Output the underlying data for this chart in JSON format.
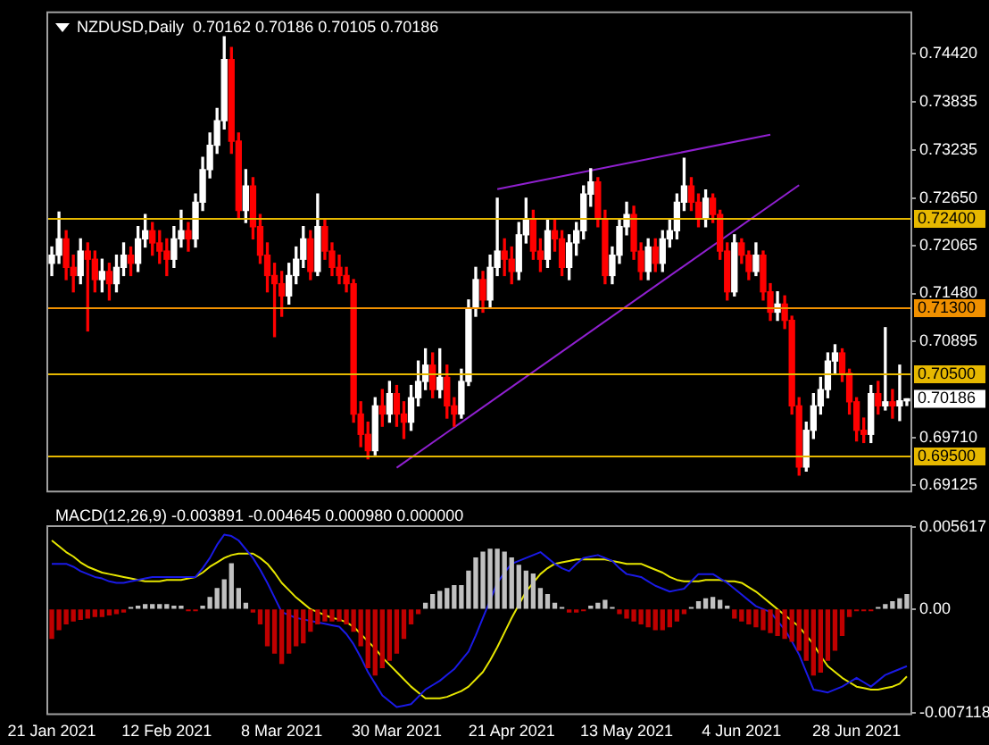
{
  "chart_data": [
    {
      "type": "candlestick",
      "title": "NZDUSD,Daily  0.70162 0.70186 0.70105 0.70186",
      "categories": [
        null,
        null,
        null,
        null,
        null,
        null,
        null,
        null,
        null,
        null,
        null,
        null,
        null,
        null,
        null,
        null,
        null,
        null,
        null,
        null,
        null,
        null,
        null,
        null,
        null,
        null,
        null,
        null,
        null,
        null,
        null,
        null,
        null,
        null,
        null,
        null,
        null,
        null,
        null,
        null,
        null,
        null,
        null,
        null,
        null,
        null,
        null,
        null,
        null,
        null,
        null,
        null,
        null,
        null,
        null,
        null,
        null,
        null,
        null,
        null,
        null,
        null,
        null,
        null,
        null,
        null,
        null,
        null,
        null,
        null,
        null,
        null,
        null,
        null,
        null,
        null,
        null,
        null,
        null,
        null,
        null,
        null,
        null,
        null,
        null,
        null,
        null,
        null,
        null,
        null,
        null,
        null,
        null,
        null,
        null,
        null,
        null,
        null,
        null,
        null,
        null,
        null,
        null,
        null,
        null,
        null,
        null,
        null,
        null,
        null,
        null,
        null,
        null,
        null,
        null,
        null,
        null,
        null,
        null,
        null
      ],
      "ohlc": [
        [
          0.7185,
          0.7205,
          0.717,
          0.7195
        ],
        [
          0.7195,
          0.7248,
          0.7185,
          0.7215
        ],
        [
          0.7215,
          0.7225,
          0.7165,
          0.718
        ],
        [
          0.718,
          0.7195,
          0.715,
          0.717
        ],
        [
          0.717,
          0.7215,
          0.716,
          0.72
        ],
        [
          0.72,
          0.721,
          0.7102,
          0.719
        ],
        [
          0.719,
          0.72,
          0.715,
          0.7165
        ],
        [
          0.7165,
          0.719,
          0.715,
          0.7175
        ],
        [
          0.7175,
          0.7185,
          0.714,
          0.716
        ],
        [
          0.716,
          0.7195,
          0.715,
          0.718
        ],
        [
          0.718,
          0.721,
          0.717,
          0.7195
        ],
        [
          0.7195,
          0.7205,
          0.717,
          0.7185
        ],
        [
          0.7185,
          0.723,
          0.7175,
          0.7215
        ],
        [
          0.7215,
          0.7245,
          0.7205,
          0.7225
        ],
        [
          0.7225,
          0.7235,
          0.7195,
          0.721
        ],
        [
          0.721,
          0.7225,
          0.7185,
          0.72
        ],
        [
          0.72,
          0.7215,
          0.717,
          0.719
        ],
        [
          0.719,
          0.723,
          0.718,
          0.7215
        ],
        [
          0.7215,
          0.725,
          0.7205,
          0.7225
        ],
        [
          0.7225,
          0.7235,
          0.72,
          0.7215
        ],
        [
          0.7215,
          0.727,
          0.7205,
          0.726
        ],
        [
          0.726,
          0.7315,
          0.725,
          0.73
        ],
        [
          0.73,
          0.7345,
          0.729,
          0.733
        ],
        [
          0.733,
          0.7375,
          0.732,
          0.736
        ],
        [
          0.736,
          0.7463,
          0.735,
          0.7435
        ],
        [
          0.7435,
          0.745,
          0.732,
          0.7335
        ],
        [
          0.7335,
          0.7345,
          0.724,
          0.725
        ],
        [
          0.725,
          0.73,
          0.7235,
          0.728
        ],
        [
          0.728,
          0.729,
          0.7215,
          0.723
        ],
        [
          0.723,
          0.7245,
          0.7185,
          0.7195
        ],
        [
          0.7195,
          0.721,
          0.715,
          0.717
        ],
        [
          0.717,
          0.7185,
          0.7095,
          0.716
        ],
        [
          0.716,
          0.7175,
          0.712,
          0.7145
        ],
        [
          0.7145,
          0.7185,
          0.7135,
          0.717
        ],
        [
          0.717,
          0.7205,
          0.716,
          0.719
        ],
        [
          0.719,
          0.723,
          0.718,
          0.7215
        ],
        [
          0.7215,
          0.7225,
          0.7165,
          0.7175
        ],
        [
          0.7175,
          0.727,
          0.717,
          0.723
        ],
        [
          0.723,
          0.724,
          0.719,
          0.72
        ],
        [
          0.72,
          0.721,
          0.717,
          0.718
        ],
        [
          0.718,
          0.7195,
          0.716,
          0.717
        ],
        [
          0.717,
          0.718,
          0.715,
          0.716
        ],
        [
          0.716,
          0.7165,
          0.699,
          0.7
        ],
        [
          0.7,
          0.7015,
          0.696,
          0.6975
        ],
        [
          0.6975,
          0.699,
          0.6945,
          0.6955
        ],
        [
          0.6955,
          0.702,
          0.695,
          0.701
        ],
        [
          0.701,
          0.703,
          0.6985,
          0.7
        ],
        [
          0.7,
          0.704,
          0.699,
          0.7025
        ],
        [
          0.7025,
          0.7035,
          0.6985,
          0.7
        ],
        [
          0.7,
          0.7015,
          0.697,
          0.699
        ],
        [
          0.699,
          0.7035,
          0.698,
          0.702
        ],
        [
          0.702,
          0.7065,
          0.701,
          0.704
        ],
        [
          0.704,
          0.708,
          0.703,
          0.706
        ],
        [
          0.706,
          0.7075,
          0.702,
          0.703
        ],
        [
          0.703,
          0.708,
          0.702,
          0.7045
        ],
        [
          0.7045,
          0.706,
          0.6995,
          0.701
        ],
        [
          0.701,
          0.702,
          0.6985,
          0.7
        ],
        [
          0.7,
          0.7055,
          0.6995,
          0.704
        ],
        [
          0.704,
          0.714,
          0.7035,
          0.713
        ],
        [
          0.713,
          0.718,
          0.712,
          0.7165
        ],
        [
          0.7165,
          0.7175,
          0.7125,
          0.714
        ],
        [
          0.714,
          0.7195,
          0.713,
          0.718
        ],
        [
          0.718,
          0.7265,
          0.717,
          0.72
        ],
        [
          0.72,
          0.7215,
          0.717,
          0.719
        ],
        [
          0.719,
          0.7205,
          0.716,
          0.7175
        ],
        [
          0.7175,
          0.7235,
          0.7165,
          0.722
        ],
        [
          0.722,
          0.7265,
          0.721,
          0.724
        ],
        [
          0.724,
          0.725,
          0.719,
          0.72
        ],
        [
          0.72,
          0.7215,
          0.7175,
          0.719
        ],
        [
          0.719,
          0.724,
          0.718,
          0.7225
        ],
        [
          0.7225,
          0.724,
          0.72,
          0.7215
        ],
        [
          0.7215,
          0.7225,
          0.717,
          0.718
        ],
        [
          0.718,
          0.722,
          0.7165,
          0.721
        ],
        [
          0.721,
          0.7235,
          0.7195,
          0.7225
        ],
        [
          0.7225,
          0.728,
          0.7215,
          0.727
        ],
        [
          0.727,
          0.7301,
          0.7255,
          0.7285
        ],
        [
          0.7285,
          0.729,
          0.723,
          0.724
        ],
        [
          0.724,
          0.725,
          0.716,
          0.717
        ],
        [
          0.717,
          0.7205,
          0.716,
          0.7195
        ],
        [
          0.7195,
          0.724,
          0.7185,
          0.723
        ],
        [
          0.723,
          0.726,
          0.722,
          0.7245
        ],
        [
          0.7245,
          0.7255,
          0.719,
          0.72
        ],
        [
          0.72,
          0.721,
          0.7165,
          0.7175
        ],
        [
          0.7175,
          0.7215,
          0.7165,
          0.7205
        ],
        [
          0.7205,
          0.7215,
          0.7175,
          0.7185
        ],
        [
          0.7185,
          0.7225,
          0.7175,
          0.7215
        ],
        [
          0.7215,
          0.724,
          0.7205,
          0.7225
        ],
        [
          0.7225,
          0.727,
          0.7215,
          0.726
        ],
        [
          0.726,
          0.7314,
          0.725,
          0.728
        ],
        [
          0.728,
          0.729,
          0.725,
          0.726
        ],
        [
          0.726,
          0.727,
          0.723,
          0.724
        ],
        [
          0.724,
          0.7275,
          0.723,
          0.7265
        ],
        [
          0.7265,
          0.727,
          0.7235,
          0.7245
        ],
        [
          0.7245,
          0.725,
          0.719,
          0.72
        ],
        [
          0.72,
          0.721,
          0.714,
          0.715
        ],
        [
          0.715,
          0.722,
          0.7145,
          0.721
        ],
        [
          0.721,
          0.7215,
          0.7185,
          0.7195
        ],
        [
          0.7195,
          0.72,
          0.7165,
          0.7175
        ],
        [
          0.7175,
          0.721,
          0.717,
          0.7195
        ],
        [
          0.7195,
          0.72,
          0.714,
          0.715
        ],
        [
          0.715,
          0.716,
          0.7115,
          0.7125
        ],
        [
          0.7125,
          0.715,
          0.7115,
          0.7135
        ],
        [
          0.7135,
          0.7145,
          0.7105,
          0.7115
        ],
        [
          0.7115,
          0.712,
          0.7,
          0.701
        ],
        [
          0.701,
          0.702,
          0.6925,
          0.6935
        ],
        [
          0.6935,
          0.699,
          0.693,
          0.698
        ],
        [
          0.698,
          0.7025,
          0.697,
          0.701
        ],
        [
          0.701,
          0.7045,
          0.7,
          0.703
        ],
        [
          0.703,
          0.7075,
          0.702,
          0.7065
        ],
        [
          0.7065,
          0.7085,
          0.705,
          0.7075
        ],
        [
          0.7075,
          0.708,
          0.704,
          0.705
        ],
        [
          0.705,
          0.7055,
          0.7,
          0.7015
        ],
        [
          0.7015,
          0.702,
          0.6967,
          0.698
        ],
        [
          0.698,
          0.6995,
          0.6965,
          0.6975
        ],
        [
          0.6975,
          0.7035,
          0.6965,
          0.7025
        ],
        [
          0.7025,
          0.704,
          0.7,
          0.701
        ],
        [
          0.701,
          0.7106,
          0.7005,
          0.7015
        ],
        [
          0.7015,
          0.703,
          0.6995,
          0.701
        ],
        [
          0.701,
          0.706,
          0.6992,
          0.70162
        ],
        [
          0.70162,
          0.70186,
          0.70105,
          0.70186
        ]
      ],
      "colors": [
        "#ffffff",
        "#ffffff",
        "#ff0000",
        "#ff0000",
        "#ffffff",
        "#ff0000",
        "#ff0000",
        "#ffffff",
        "#ff0000",
        "#ffffff",
        "#ffffff",
        "#ff0000",
        "#ffffff",
        "#ffffff",
        "#ff0000",
        "#ff0000",
        "#ff0000",
        "#ffffff",
        "#ffffff",
        "#ff0000",
        "#ffffff",
        "#ffffff",
        "#ffffff",
        "#ffffff",
        "#ffffff",
        "#ff0000",
        "#ff0000",
        "#ffffff",
        "#ff0000",
        "#ff0000",
        "#ff0000",
        "#ff0000",
        "#ff0000",
        "#ffffff",
        "#ffffff",
        "#ffffff",
        "#ff0000",
        "#ffffff",
        "#ff0000",
        "#ff0000",
        "#ff0000",
        "#ff0000",
        "#ff0000",
        "#ff0000",
        "#ff0000",
        "#ffffff",
        "#ff0000",
        "#ffffff",
        "#ff0000",
        "#ff0000",
        "#ffffff",
        "#ffffff",
        "#ffffff",
        "#ff0000",
        "#ffffff",
        "#ff0000",
        "#ff0000",
        "#ffffff",
        "#ffffff",
        "#ffffff",
        "#ff0000",
        "#ffffff",
        "#ffffff",
        "#ff0000",
        "#ff0000",
        "#ffffff",
        "#ffffff",
        "#ff0000",
        "#ff0000",
        "#ffffff",
        "#ff0000",
        "#ff0000",
        "#ffffff",
        "#ffffff",
        "#ffffff",
        "#ffffff",
        "#ff0000",
        "#ff0000",
        "#ffffff",
        "#ffffff",
        "#ffffff",
        "#ff0000",
        "#ff0000",
        "#ffffff",
        "#ff0000",
        "#ffffff",
        "#ffffff",
        "#ffffff",
        "#ffffff",
        "#ff0000",
        "#ff0000",
        "#ffffff",
        "#ff0000",
        "#ff0000",
        "#ff0000",
        "#ffffff",
        "#ff0000",
        "#ff0000",
        "#ffffff",
        "#ff0000",
        "#ff0000",
        "#ffffff",
        "#ff0000",
        "#ff0000",
        "#ff0000",
        "#ffffff",
        "#ffffff",
        "#ffffff",
        "#ffffff",
        "#ffffff",
        "#ff0000",
        "#ff0000",
        "#ff0000",
        "#ff0000",
        "#ffffff",
        "#ff0000",
        "#ffffff",
        "#ff0000",
        "#ffffff",
        "#ffffff"
      ],
      "series": [
        {
          "type": "line",
          "color": "#9020d0",
          "values": [
            null,
            null,
            null,
            null,
            null,
            null,
            null,
            null,
            null,
            null,
            null,
            null,
            null,
            null,
            null,
            null,
            null,
            null,
            null,
            null,
            null,
            null,
            null,
            null,
            null,
            null,
            null,
            null,
            null,
            null,
            null,
            null,
            null,
            null,
            null,
            null,
            null,
            null,
            null,
            null,
            null,
            null,
            null,
            null,
            null,
            null,
            null,
            null,
            null,
            null,
            null,
            null,
            null,
            null,
            null,
            null,
            null,
            null,
            null,
            null,
            null,
            null,
            0.7276,
            null,
            null,
            null,
            null,
            null,
            null,
            null,
            null,
            null,
            null,
            null,
            null,
            null,
            null,
            null,
            null,
            null,
            null,
            null,
            null,
            null,
            null,
            null,
            null,
            null,
            null,
            null,
            null,
            null,
            null,
            null,
            null,
            null,
            null,
            null,
            null,
            null,
            0.7343,
            null,
            null,
            null,
            null,
            null,
            null,
            null,
            null,
            null,
            null,
            null,
            null,
            null,
            null,
            null,
            null,
            null,
            null,
            null
          ]
        },
        {
          "type": "line",
          "color": "#9020d0",
          "values": [
            null,
            null,
            null,
            null,
            null,
            null,
            null,
            null,
            null,
            null,
            null,
            null,
            null,
            null,
            null,
            null,
            null,
            null,
            null,
            null,
            null,
            null,
            null,
            null,
            null,
            null,
            null,
            null,
            null,
            null,
            null,
            null,
            null,
            null,
            null,
            null,
            null,
            null,
            null,
            null,
            null,
            null,
            null,
            null,
            null,
            null,
            null,
            null,
            0.6934,
            null,
            null,
            null,
            null,
            null,
            null,
            null,
            null,
            null,
            null,
            null,
            null,
            null,
            null,
            null,
            null,
            null,
            null,
            null,
            null,
            null,
            null,
            null,
            null,
            null,
            null,
            null,
            null,
            null,
            null,
            null,
            null,
            null,
            null,
            null,
            null,
            null,
            null,
            null,
            null,
            null,
            null,
            null,
            null,
            null,
            null,
            null,
            null,
            null,
            null,
            null,
            null,
            null,
            null,
            null,
            0.7281,
            null,
            null,
            null,
            null,
            null,
            null,
            null,
            null,
            null,
            null,
            null,
            null,
            null,
            null,
            null
          ]
        }
      ],
      "ylim": [
        0.6906,
        0.7492
      ],
      "yticks": [
        {
          "value": 0.7442,
          "label": "0.74420"
        },
        {
          "value": 0.73835,
          "label": "0.73835"
        },
        {
          "value": 0.73235,
          "label": "0.73235"
        },
        {
          "value": 0.7265,
          "label": "0.72650"
        },
        {
          "value": 0.72065,
          "label": "0.72065"
        },
        {
          "value": 0.7148,
          "label": "0.71480"
        },
        {
          "value": 0.70895,
          "label": "0.70895"
        },
        {
          "value": 0.6971,
          "label": "0.69710"
        },
        {
          "value": 0.69125,
          "label": "0.69125"
        }
      ],
      "ref_lines": [
        {
          "axis": "y",
          "value": 0.724,
          "label": "0.72400",
          "color": "#e6b800"
        },
        {
          "axis": "y",
          "value": 0.713,
          "label": "0.71300",
          "color": "#f09000"
        },
        {
          "axis": "y",
          "value": 0.705,
          "label": "0.70500",
          "color": "#e6b800"
        },
        {
          "axis": "y",
          "value": 0.695,
          "label": "0.69500",
          "color": "#e6b800"
        }
      ],
      "annotations": [
        "0.70186"
      ]
    },
    {
      "type": "bar",
      "title": "MACD(12,26,9) -0.003891 -0.004645 0.000980 0.000000",
      "categories": [
        "21 Jan 2021",
        null,
        null,
        null,
        null,
        null,
        null,
        null,
        null,
        null,
        null,
        null,
        null,
        null,
        null,
        null,
        "12 Feb 2021",
        null,
        null,
        null,
        null,
        null,
        null,
        null,
        null,
        null,
        null,
        null,
        null,
        null,
        null,
        null,
        "8 Mar 2021",
        null,
        null,
        null,
        null,
        null,
        null,
        null,
        null,
        null,
        null,
        null,
        null,
        null,
        null,
        null,
        "30 Mar 2021",
        null,
        null,
        null,
        null,
        null,
        null,
        null,
        null,
        null,
        null,
        null,
        null,
        null,
        null,
        null,
        "21 Apr 2021",
        null,
        null,
        null,
        null,
        null,
        null,
        null,
        null,
        null,
        null,
        null,
        null,
        null,
        null,
        null,
        "13 May 2021",
        null,
        null,
        null,
        null,
        null,
        null,
        null,
        null,
        null,
        null,
        null,
        null,
        null,
        null,
        null,
        "4 Jun 2021",
        null,
        null,
        null,
        null,
        null,
        null,
        null,
        null,
        null,
        null,
        null,
        null,
        null,
        null,
        null,
        "28 Jun 2021",
        null,
        null,
        null,
        null,
        null,
        null,
        null
      ],
      "series": [
        {
          "type": "bar",
          "colors": [
            "#c00000",
            "#c00000",
            "#c00000",
            "#c00000",
            "#c00000",
            "#c00000",
            "#c00000",
            "#c00000",
            "#c00000",
            "#c00000",
            "#c00000",
            "#c0c0c0",
            "#c0c0c0",
            "#c0c0c0",
            "#c0c0c0",
            "#c0c0c0",
            "#c0c0c0",
            "#c0c0c0",
            "#c0c0c0",
            "#c00000",
            "#c00000",
            "#c0c0c0",
            "#c0c0c0",
            "#c0c0c0",
            "#c0c0c0",
            "#c0c0c0",
            "#c0c0c0",
            "#c0c0c0",
            "#c00000",
            "#c00000",
            "#c00000",
            "#c00000",
            "#c00000",
            "#c00000",
            "#c00000",
            "#c00000",
            "#c00000",
            "#c00000",
            "#c00000",
            "#c00000",
            "#c00000",
            "#c00000",
            "#c00000",
            "#c00000",
            "#c00000",
            "#c00000",
            "#c00000",
            "#c00000",
            "#c00000",
            "#c00000",
            "#c00000",
            "#c00000",
            "#c0c0c0",
            "#c0c0c0",
            "#c0c0c0",
            "#c0c0c0",
            "#c0c0c0",
            "#c0c0c0",
            "#c0c0c0",
            "#c0c0c0",
            "#c0c0c0",
            "#c0c0c0",
            "#c0c0c0",
            "#c0c0c0",
            "#c0c0c0",
            "#c0c0c0",
            "#c0c0c0",
            "#c0c0c0",
            "#c0c0c0",
            "#c0c0c0",
            "#c0c0c0",
            "#c0c0c0",
            "#c00000",
            "#c00000",
            "#c00000",
            "#c0c0c0",
            "#c0c0c0",
            "#c0c0c0",
            "#c0c0c0",
            "#c00000",
            "#c00000",
            "#c00000",
            "#c00000",
            "#c00000",
            "#c00000",
            "#c00000",
            "#c00000",
            "#c00000",
            "#c00000",
            "#c0c0c0",
            "#c0c0c0",
            "#c0c0c0",
            "#c0c0c0",
            "#c0c0c0",
            "#c0c0c0",
            "#c00000",
            "#c00000",
            "#c00000",
            "#c00000",
            "#c00000",
            "#c00000",
            "#c00000",
            "#c00000",
            "#c00000",
            "#c00000",
            "#c00000",
            "#c00000",
            "#c00000",
            "#c00000",
            "#c00000",
            "#c00000",
            "#c00000",
            "#c00000",
            "#c00000",
            "#c00000",
            "#c0c0c0",
            "#c0c0c0",
            "#c0c0c0",
            "#c0c0c0",
            "#c0c0c0"
          ],
          "values": [
            -0.002,
            -0.0014,
            -0.001,
            -0.0008,
            -0.0007,
            -0.0006,
            -0.0005,
            -0.0005,
            -0.0004,
            -0.0003,
            -0.0002,
            0.0001,
            0.0002,
            0.0003,
            0.0003,
            0.0003,
            0.0003,
            0.0002,
            0.0002,
            -0.0001,
            -0.0001,
            0.0002,
            0.0008,
            0.0014,
            0.002,
            0.0031,
            0.0014,
            0.0004,
            -0.0002,
            -0.001,
            -0.0025,
            -0.003,
            -0.0037,
            -0.003,
            -0.0025,
            -0.0023,
            -0.0015,
            -0.001,
            -0.0008,
            -0.0008,
            -0.0008,
            -0.001,
            -0.0015,
            -0.0025,
            -0.004,
            -0.0045,
            -0.004,
            -0.0035,
            -0.003,
            -0.002,
            -0.001,
            -0.0003,
            0.0004,
            0.001,
            0.0012,
            0.0014,
            0.0016,
            0.0016,
            0.0026,
            0.0035,
            0.0039,
            0.0041,
            0.0041,
            0.0039,
            0.0035,
            0.003,
            0.0026,
            0.0024,
            0.0014,
            0.001,
            0.0004,
            0.0001,
            -0.0002,
            -0.0002,
            -0.0001,
            0.0002,
            0.0004,
            0.0006,
            0.0001,
            -0.0003,
            -0.0006,
            -0.0008,
            -0.001,
            -0.0012,
            -0.0014,
            -0.0014,
            -0.0012,
            -0.0008,
            -0.0003,
            0.0001,
            0.0005,
            0.0007,
            0.0008,
            0.0006,
            0.0002,
            -0.0006,
            -0.0008,
            -0.001,
            -0.0012,
            -0.0014,
            -0.0016,
            -0.0018,
            -0.002,
            -0.0022,
            -0.0028,
            -0.0035,
            -0.0045,
            -0.0043,
            -0.0035,
            -0.0028,
            -0.0018,
            -0.0005,
            -0.0001,
            -0.0001,
            -0.0001,
            0.0001,
            0.0003,
            0.0005,
            0.0007,
            0.001
          ]
        },
        {
          "type": "line",
          "color": "#1a1ae6",
          "values": [
            0.0031,
            0.0031,
            0.0031,
            0.0029,
            0.0026,
            0.0024,
            0.0022,
            0.0021,
            0.0019,
            0.0018,
            0.0018,
            0.0019,
            0.002,
            0.0021,
            0.0022,
            0.0022,
            0.0022,
            0.0022,
            0.0022,
            0.0022,
            0.0022,
            0.0028,
            0.0035,
            0.0044,
            0.0051,
            0.005,
            0.0047,
            0.0041,
            0.0035,
            0.0027,
            0.0018,
            0.0008,
            -0.0002,
            -0.0004,
            -0.0006,
            -0.0007,
            -0.0008,
            -0.0009,
            -0.001,
            -0.0011,
            -0.0012,
            -0.0017,
            -0.0024,
            -0.0033,
            -0.0043,
            -0.0051,
            -0.0059,
            -0.0063,
            -0.0067,
            -0.0066,
            -0.0065,
            -0.006,
            -0.0055,
            -0.0052,
            -0.0049,
            -0.0045,
            -0.0041,
            -0.0035,
            -0.0029,
            -0.0018,
            -0.0006,
            0.0006,
            0.0018,
            0.0025,
            0.0031,
            0.0033,
            0.0035,
            0.0037,
            0.0039,
            0.0035,
            0.0031,
            0.0028,
            0.0026,
            0.0031,
            0.0035,
            0.0036,
            0.0037,
            0.0035,
            0.0033,
            0.0028,
            0.0024,
            0.0023,
            0.0022,
            0.0019,
            0.0016,
            0.0014,
            0.0012,
            0.0013,
            0.0014,
            0.0019,
            0.0024,
            0.0024,
            0.0024,
            0.0021,
            0.0018,
            0.0014,
            0.001,
            0.0006,
            0.0002,
            0.0,
            -0.0002,
            -0.0008,
            -0.0014,
            -0.0022,
            -0.0031,
            -0.0043,
            -0.0055,
            -0.0056,
            -0.0057,
            -0.0055,
            -0.0053,
            -0.005,
            -0.0047,
            -0.005,
            -0.0053,
            -0.0049,
            -0.0045,
            -0.0043,
            -0.0041,
            -0.0039
          ]
        },
        {
          "type": "line",
          "color": "#e6e600",
          "values": [
            0.0047,
            0.0043,
            0.0039,
            0.0036,
            0.0032,
            0.0029,
            0.0027,
            0.0025,
            0.0024,
            0.0023,
            0.0022,
            0.0021,
            0.002,
            0.0019,
            0.0019,
            0.0019,
            0.002,
            0.002,
            0.002,
            0.0021,
            0.0022,
            0.0025,
            0.0029,
            0.0032,
            0.0035,
            0.0037,
            0.0038,
            0.0038,
            0.0038,
            0.0035,
            0.0031,
            0.0025,
            0.0018,
            0.0013,
            0.0008,
            0.0004,
            0.0,
            -0.0002,
            -0.0004,
            -0.0006,
            -0.0007,
            -0.0009,
            -0.0012,
            -0.0017,
            -0.0022,
            -0.0027,
            -0.0033,
            -0.0038,
            -0.0043,
            -0.0048,
            -0.0053,
            -0.0057,
            -0.0061,
            -0.0061,
            -0.0061,
            -0.006,
            -0.0058,
            -0.0056,
            -0.0053,
            -0.0048,
            -0.0043,
            -0.0035,
            -0.0026,
            -0.0016,
            -0.0006,
            0.0003,
            0.0012,
            0.0018,
            0.0024,
            0.0028,
            0.0031,
            0.0032,
            0.0033,
            0.0034,
            0.0034,
            0.0034,
            0.0034,
            0.0034,
            0.0033,
            0.0032,
            0.0031,
            0.0031,
            0.0031,
            0.0029,
            0.0027,
            0.0025,
            0.0022,
            0.002,
            0.0019,
            0.0019,
            0.0019,
            0.002,
            0.002,
            0.002,
            0.0019,
            0.0019,
            0.0018,
            0.0015,
            0.0012,
            0.0008,
            0.0004,
            0.0,
            -0.0004,
            -0.0008,
            -0.0012,
            -0.0018,
            -0.0024,
            -0.0032,
            -0.0039,
            -0.0043,
            -0.0047,
            -0.005,
            -0.0053,
            -0.0054,
            -0.0055,
            -0.0055,
            -0.0054,
            -0.0053,
            -0.0051,
            -0.0046
          ]
        }
      ],
      "ylim": [
        -0.007118,
        0.005617
      ],
      "yticks": [
        {
          "value": 0.005617,
          "label": "0.005617"
        },
        {
          "value": 0,
          "label": "0.00"
        },
        {
          "value": -0.007118,
          "label": "-0.007118"
        }
      ]
    }
  ]
}
